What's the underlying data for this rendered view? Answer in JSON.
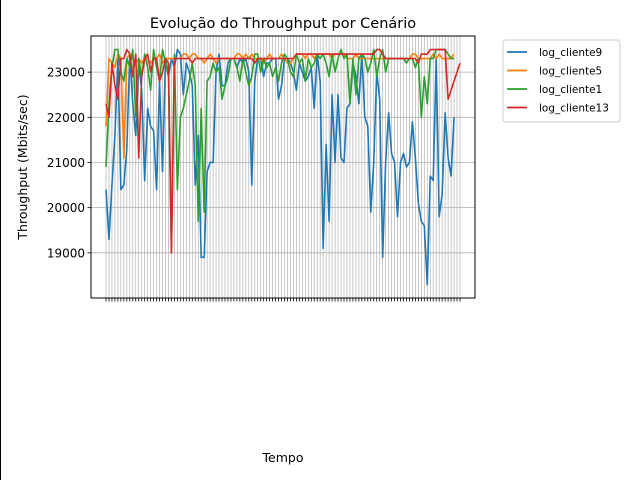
{
  "chart_data": {
    "type": "line",
    "title": "Evolução do Throughput por Cenário",
    "xlabel": "Tempo",
    "ylabel": "Throughput (Mbits/sec)",
    "ylim": [
      18000,
      23800
    ],
    "yticks": [
      19000,
      20000,
      21000,
      22000,
      23000
    ],
    "x_tick_count": 120,
    "grid": true,
    "legend_position": "outside-right",
    "series": [
      {
        "name": "log_cliente9",
        "color": "#1f77b4",
        "values": [
          20400,
          19300,
          20500,
          21600,
          23300,
          20400,
          20500,
          21300,
          23400,
          22300,
          21600,
          23200,
          22600,
          20600,
          22200,
          21800,
          21700,
          20400,
          22800,
          20800,
          23300,
          22900,
          23300,
          23100,
          23500,
          23400,
          22500,
          23200,
          23000,
          22700,
          20500,
          21600,
          18900,
          18900,
          20800,
          21000,
          21000,
          23000,
          23400,
          22700,
          22700,
          23200,
          23300,
          23300,
          23100,
          23300,
          23200,
          23300,
          23000,
          20500,
          22800,
          23300,
          23300,
          22900,
          23200,
          23200,
          23300,
          23300,
          22400,
          22700,
          23300,
          23300,
          23200,
          23000,
          22600,
          23200,
          23000,
          22800,
          22900,
          23100,
          22200,
          23400,
          22800,
          19100,
          21400,
          19700,
          22500,
          21000,
          22500,
          21100,
          21000,
          22200,
          22300,
          23200,
          22900,
          22300,
          23400,
          22000,
          21800,
          19900,
          21000,
          23000,
          22400,
          18900,
          21000,
          22100,
          21200,
          21000,
          19800,
          21000,
          21200,
          20900,
          21000,
          21900,
          21100,
          20100,
          19700,
          19600,
          18300,
          20700,
          20600,
          23300,
          19800,
          20300,
          22100,
          21100,
          20700,
          22000
        ]
      },
      {
        "name": "log_cliente5",
        "color": "#ff7f0e",
        "values": [
          21800,
          23300,
          23200,
          23100,
          23400,
          23300,
          21100,
          23300,
          23400,
          23300,
          23200,
          23300,
          23200,
          23300,
          23300,
          23200,
          23300,
          23300,
          23400,
          23200,
          23300,
          23300,
          23300,
          23300,
          23300,
          23300,
          23400,
          23400,
          23300,
          23400,
          23400,
          23300,
          23300,
          23200,
          23300,
          23400,
          23300,
          23200,
          23300,
          23300,
          23300,
          23300,
          23300,
          23300,
          23400,
          23400,
          23300,
          23400,
          23300,
          23400,
          23300,
          23300,
          23300,
          23200,
          23300,
          23400,
          23300,
          23300,
          23300,
          23400,
          23300,
          23200,
          23200,
          23300,
          23400,
          23400,
          23400,
          23300,
          23400,
          23400,
          23300,
          23400,
          23400,
          23400,
          23400,
          23400,
          23300,
          23400,
          23400,
          23400,
          23400,
          23300,
          23300,
          23300,
          23400,
          23300,
          23300,
          23300,
          23300,
          23300,
          23300,
          23300,
          23300,
          23300,
          23300,
          23300,
          23300,
          23300,
          23300,
          23300,
          23300,
          23300,
          23300,
          23400,
          23400,
          23300,
          23300,
          23300,
          23300,
          23300,
          23400,
          23300,
          23400,
          23300,
          23300,
          23300,
          23300,
          23400
        ]
      },
      {
        "name": "log_cliente1",
        "color": "#2ca02c",
        "values": [
          20900,
          22300,
          23100,
          23500,
          23500,
          23000,
          22800,
          23300,
          23100,
          23500,
          22000,
          23300,
          22900,
          23400,
          23100,
          22600,
          23500,
          23100,
          22800,
          23500,
          23200,
          22900,
          19000,
          23400,
          20400,
          22000,
          22200,
          22500,
          22800,
          23200,
          22700,
          19700,
          22200,
          19900,
          22800,
          22900,
          23200,
          23000,
          23100,
          22400,
          22700,
          22900,
          23300,
          23300,
          23100,
          22800,
          23300,
          23000,
          22700,
          22900,
          23400,
          23400,
          23000,
          23300,
          23100,
          23200,
          22900,
          23100,
          22800,
          23200,
          23400,
          23300,
          23000,
          22900,
          23400,
          23200,
          23300,
          22800,
          23300,
          23100,
          23200,
          23400,
          23300,
          23400,
          23200,
          22900,
          23400,
          23000,
          23300,
          23500,
          23300,
          23400,
          22300,
          23300,
          22500,
          23300,
          23400,
          23300,
          23000,
          23200,
          23500,
          22900,
          23300,
          23500,
          23000,
          23300,
          23300,
          23300,
          23300,
          23300,
          23300,
          23200,
          23300,
          23300,
          23100,
          23300,
          22000,
          22900,
          22300,
          23300,
          23300,
          23500,
          23500,
          23500,
          23500,
          23400,
          23300,
          23300
        ]
      },
      {
        "name": "log_cliente13",
        "color": "#d62728",
        "values": [
          22300,
          22000,
          23200,
          22700,
          22400,
          23300,
          23300,
          23500,
          23400,
          22900,
          23400,
          21100,
          22900,
          23300,
          23400,
          23000,
          23300,
          23300,
          22800,
          23000,
          23300,
          23200,
          19000,
          23300,
          23300,
          23300,
          23300,
          23300,
          23300,
          23200,
          23300,
          23300,
          23300,
          23300,
          23300,
          23300,
          23300,
          23300,
          23300,
          23300,
          23300,
          23300,
          23300,
          23300,
          23300,
          23300,
          23300,
          23300,
          23300,
          23300,
          23200,
          23300,
          23300,
          23300,
          23300,
          23300,
          23300,
          23300,
          23300,
          23300,
          23300,
          23300,
          23300,
          23300,
          23400,
          23400,
          23400,
          23400,
          23400,
          23400,
          23400,
          23400,
          23400,
          23400,
          23400,
          23400,
          23400,
          23400,
          23400,
          23400,
          23400,
          23400,
          23400,
          23400,
          23400,
          23400,
          23400,
          23400,
          23400,
          23400,
          23400,
          23500,
          23500,
          23400,
          23300,
          23300,
          23300,
          23300,
          23300,
          23300,
          23300,
          23300,
          23300,
          23300,
          23300,
          23200,
          23400,
          23400,
          23400,
          23500,
          23500,
          23500,
          23500,
          23500,
          23500,
          22400,
          22600,
          22800,
          23000,
          23200
        ]
      }
    ]
  }
}
